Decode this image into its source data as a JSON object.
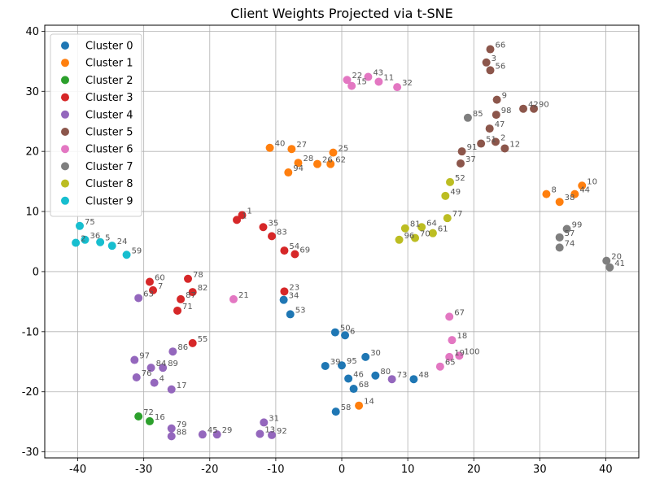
{
  "chart_data": {
    "type": "scatter",
    "title": "Client Weights Projected via t-SNE",
    "xlabel": "",
    "ylabel": "",
    "xlim": [
      -45,
      45
    ],
    "ylim": [
      -31,
      41
    ],
    "xticks": [
      -40,
      -30,
      -20,
      -10,
      0,
      10,
      20,
      30,
      40
    ],
    "yticks": [
      -30,
      -20,
      -10,
      0,
      10,
      20,
      30,
      40
    ],
    "grid": true,
    "legend_position": "top-left",
    "series": [
      {
        "name": "Cluster 0",
        "color": "#1f77b4",
        "points": [
          {
            "x": -8.8,
            "y": -4.7,
            "label": "34"
          },
          {
            "x": -7.8,
            "y": -7.1,
            "label": "53"
          },
          {
            "x": -1.0,
            "y": -10.1,
            "label": "50"
          },
          {
            "x": 0.5,
            "y": -10.6,
            "label": "6"
          },
          {
            "x": -2.5,
            "y": -15.7,
            "label": "39"
          },
          {
            "x": 0.0,
            "y": -15.6,
            "label": "95"
          },
          {
            "x": 3.6,
            "y": -14.2,
            "label": "30"
          },
          {
            "x": 1.0,
            "y": -17.8,
            "label": "46"
          },
          {
            "x": 5.1,
            "y": -17.3,
            "label": "80"
          },
          {
            "x": 10.9,
            "y": -17.9,
            "label": "48"
          },
          {
            "x": 1.8,
            "y": -19.5,
            "label": "68"
          },
          {
            "x": -0.9,
            "y": -23.3,
            "label": "58"
          }
        ]
      },
      {
        "name": "Cluster 1",
        "color": "#ff7f0e",
        "points": [
          {
            "x": -10.9,
            "y": 20.6,
            "label": "40"
          },
          {
            "x": -7.6,
            "y": 20.4,
            "label": "27"
          },
          {
            "x": -6.6,
            "y": 18.1,
            "label": "28"
          },
          {
            "x": -8.1,
            "y": 16.5,
            "label": "94"
          },
          {
            "x": -3.7,
            "y": 17.9,
            "label": "26"
          },
          {
            "x": -1.7,
            "y": 17.9,
            "label": "62"
          },
          {
            "x": -1.3,
            "y": 19.8,
            "label": "25"
          },
          {
            "x": 31.0,
            "y": 12.9,
            "label": "8"
          },
          {
            "x": 33.0,
            "y": 11.6,
            "label": "38"
          },
          {
            "x": 35.3,
            "y": 12.9,
            "label": "44"
          },
          {
            "x": 36.4,
            "y": 14.3,
            "label": "10"
          },
          {
            "x": 2.6,
            "y": -22.3,
            "label": "14"
          }
        ]
      },
      {
        "name": "Cluster 2",
        "color": "#2ca02c",
        "points": [
          {
            "x": -30.8,
            "y": -24.1,
            "label": "72"
          },
          {
            "x": -29.1,
            "y": -24.9,
            "label": "16"
          }
        ]
      },
      {
        "name": "Cluster 3",
        "color": "#d62728",
        "points": [
          {
            "x": -15.9,
            "y": 8.6,
            "label": "1"
          },
          {
            "x": -15.1,
            "y": 9.4,
            "label": "1"
          },
          {
            "x": -11.9,
            "y": 7.4,
            "label": "35"
          },
          {
            "x": -10.6,
            "y": 5.9,
            "label": "83"
          },
          {
            "x": -8.7,
            "y": 3.5,
            "label": "54"
          },
          {
            "x": -7.1,
            "y": 2.9,
            "label": "69"
          },
          {
            "x": -29.1,
            "y": -1.7,
            "label": "60"
          },
          {
            "x": -28.6,
            "y": -3.1,
            "label": "7"
          },
          {
            "x": -23.3,
            "y": -1.2,
            "label": "78"
          },
          {
            "x": -22.6,
            "y": -3.4,
            "label": "82"
          },
          {
            "x": -24.4,
            "y": -4.6,
            "label": "87"
          },
          {
            "x": -24.9,
            "y": -6.5,
            "label": "71"
          },
          {
            "x": -8.7,
            "y": -3.3,
            "label": "23"
          },
          {
            "x": -22.6,
            "y": -11.9,
            "label": "55"
          }
        ]
      },
      {
        "name": "Cluster 4",
        "color": "#9467bd",
        "points": [
          {
            "x": -30.8,
            "y": -4.4,
            "label": "63"
          },
          {
            "x": -25.6,
            "y": -13.3,
            "label": "86"
          },
          {
            "x": -31.4,
            "y": -14.7,
            "label": "97"
          },
          {
            "x": -28.9,
            "y": -16.0,
            "label": "84"
          },
          {
            "x": -27.1,
            "y": -16.0,
            "label": "89"
          },
          {
            "x": -31.1,
            "y": -17.6,
            "label": "76"
          },
          {
            "x": -28.4,
            "y": -18.5,
            "label": "4"
          },
          {
            "x": -25.8,
            "y": -19.6,
            "label": "17"
          },
          {
            "x": 7.6,
            "y": -17.9,
            "label": "73"
          },
          {
            "x": -25.8,
            "y": -26.1,
            "label": "79"
          },
          {
            "x": -25.8,
            "y": -27.4,
            "label": "88"
          },
          {
            "x": -21.1,
            "y": -27.1,
            "label": "45"
          },
          {
            "x": -18.9,
            "y": -27.1,
            "label": "29"
          },
          {
            "x": -11.8,
            "y": -25.1,
            "label": "31"
          },
          {
            "x": -12.4,
            "y": -27.0,
            "label": "13"
          },
          {
            "x": -10.6,
            "y": -27.2,
            "label": "92"
          }
        ]
      },
      {
        "name": "Cluster 5",
        "color": "#8c564b",
        "points": [
          {
            "x": 22.5,
            "y": 37.0,
            "label": "66"
          },
          {
            "x": 21.9,
            "y": 34.8,
            "label": "3"
          },
          {
            "x": 22.5,
            "y": 33.5,
            "label": "56"
          },
          {
            "x": 23.5,
            "y": 28.6,
            "label": "9"
          },
          {
            "x": 23.4,
            "y": 26.1,
            "label": "98"
          },
          {
            "x": 27.5,
            "y": 27.1,
            "label": "42"
          },
          {
            "x": 29.1,
            "y": 27.1,
            "label": "90"
          },
          {
            "x": 22.4,
            "y": 23.8,
            "label": "47"
          },
          {
            "x": 21.1,
            "y": 21.3,
            "label": "51"
          },
          {
            "x": 23.3,
            "y": 21.6,
            "label": "2"
          },
          {
            "x": 24.7,
            "y": 20.5,
            "label": "12"
          },
          {
            "x": 18.2,
            "y": 20.0,
            "label": "91"
          },
          {
            "x": 18.0,
            "y": 18.0,
            "label": "37"
          }
        ]
      },
      {
        "name": "Cluster 6",
        "color": "#e377c2",
        "points": [
          {
            "x": 0.8,
            "y": 31.9,
            "label": "22"
          },
          {
            "x": 1.5,
            "y": 30.9,
            "label": "15"
          },
          {
            "x": 4.0,
            "y": 32.4,
            "label": "43"
          },
          {
            "x": 5.6,
            "y": 31.6,
            "label": "11"
          },
          {
            "x": 8.4,
            "y": 30.7,
            "label": "32"
          },
          {
            "x": -16.4,
            "y": -4.6,
            "label": "21"
          },
          {
            "x": 16.3,
            "y": -7.5,
            "label": "67"
          },
          {
            "x": 16.7,
            "y": -11.4,
            "label": "18"
          },
          {
            "x": 16.3,
            "y": -14.2,
            "label": "19"
          },
          {
            "x": 17.8,
            "y": -14.0,
            "label": "100"
          },
          {
            "x": 14.9,
            "y": -15.8,
            "label": "65"
          }
        ]
      },
      {
        "name": "Cluster 7",
        "color": "#7f7f7f",
        "points": [
          {
            "x": 19.1,
            "y": 25.6,
            "label": "85"
          },
          {
            "x": 34.1,
            "y": 7.1,
            "label": "99"
          },
          {
            "x": 33.0,
            "y": 5.7,
            "label": "57"
          },
          {
            "x": 33.0,
            "y": 4.0,
            "label": "74"
          },
          {
            "x": 40.1,
            "y": 1.8,
            "label": "20"
          },
          {
            "x": 40.6,
            "y": 0.7,
            "label": "41"
          }
        ]
      },
      {
        "name": "Cluster 8",
        "color": "#bcbd22",
        "points": [
          {
            "x": 16.4,
            "y": 14.9,
            "label": "52"
          },
          {
            "x": 15.7,
            "y": 12.6,
            "label": "49"
          },
          {
            "x": 16.0,
            "y": 8.9,
            "label": "77"
          },
          {
            "x": 9.6,
            "y": 7.2,
            "label": "81"
          },
          {
            "x": 12.1,
            "y": 7.4,
            "label": "64"
          },
          {
            "x": 13.8,
            "y": 6.4,
            "label": "61"
          },
          {
            "x": 8.7,
            "y": 5.3,
            "label": "96"
          },
          {
            "x": 11.1,
            "y": 5.6,
            "label": "70"
          }
        ]
      },
      {
        "name": "Cluster 9",
        "color": "#17becf",
        "points": [
          {
            "x": -39.7,
            "y": 7.6,
            "label": "75"
          },
          {
            "x": -40.3,
            "y": 4.8,
            "label": "2"
          },
          {
            "x": -38.9,
            "y": 5.3,
            "label": "36"
          },
          {
            "x": -36.6,
            "y": 4.9,
            "label": "5"
          },
          {
            "x": -34.8,
            "y": 4.3,
            "label": "24"
          },
          {
            "x": -32.6,
            "y": 2.8,
            "label": "59"
          }
        ]
      }
    ]
  }
}
